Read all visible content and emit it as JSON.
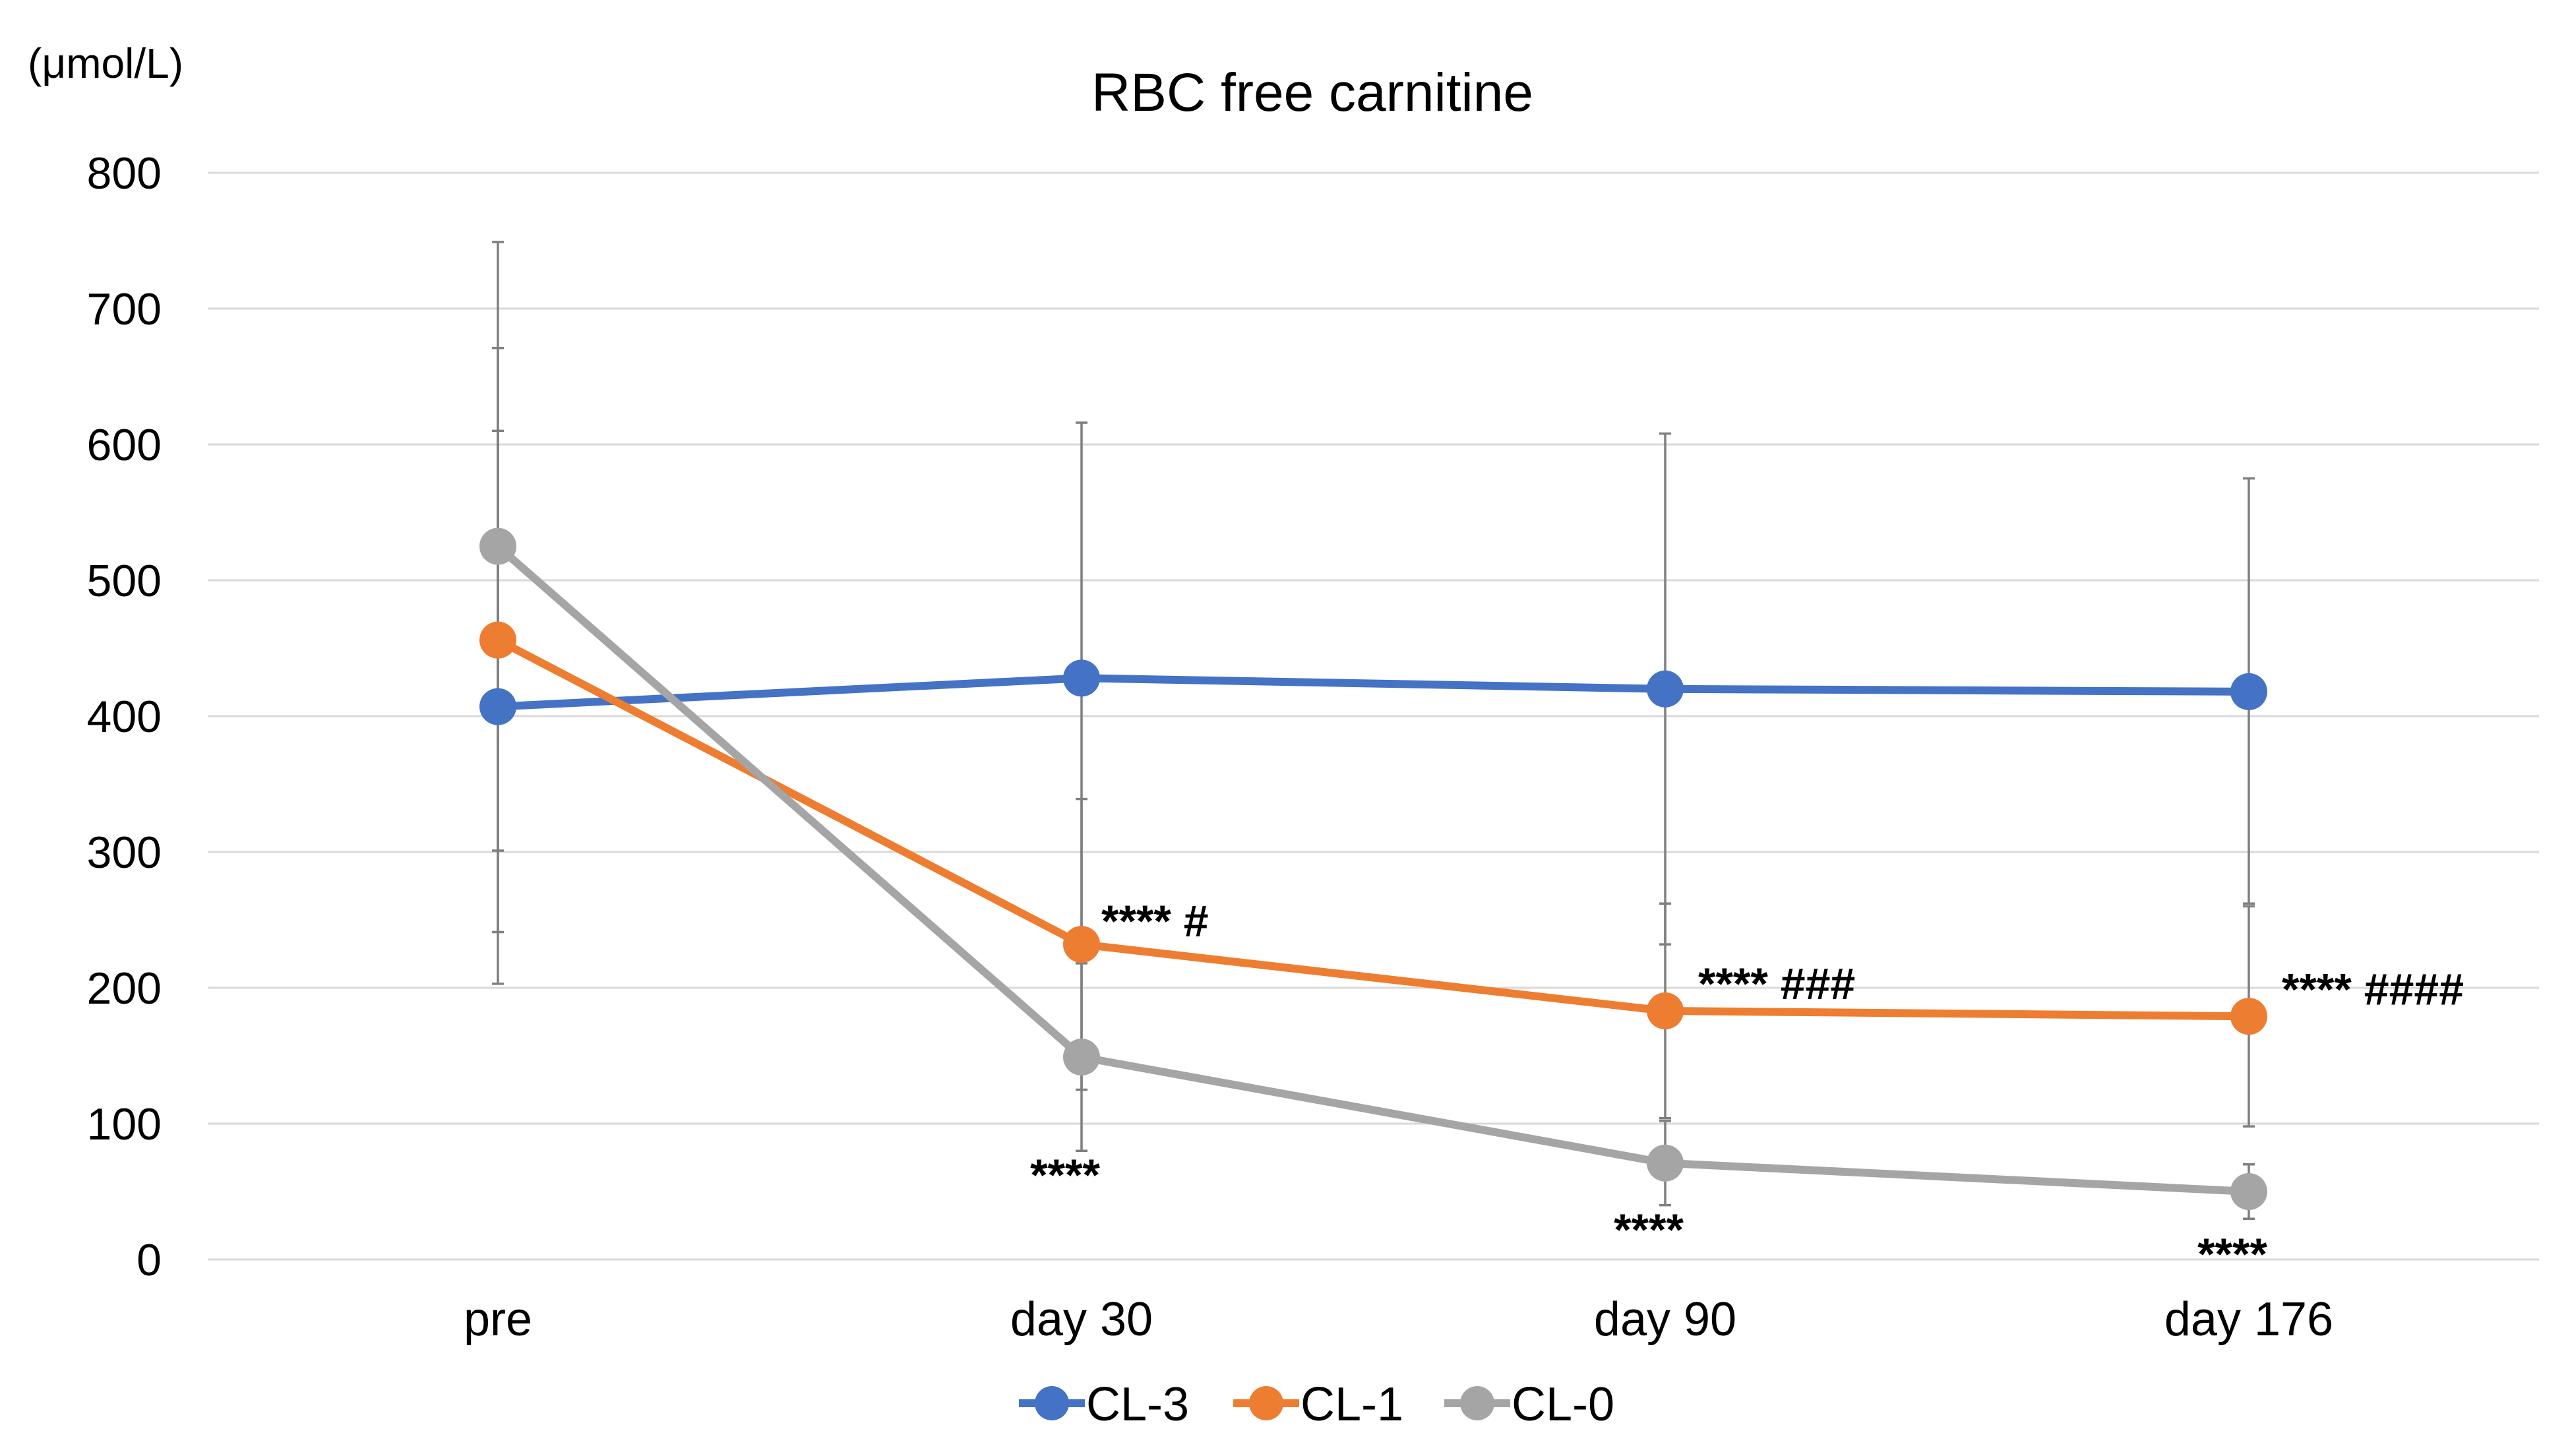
{
  "chart_data": {
    "type": "line",
    "title": "RBC free carnitine",
    "unit_label": "(μmol/L)",
    "xlabel": "",
    "ylabel": "",
    "categories": [
      "pre",
      "day 30",
      "day 90",
      "day 176"
    ],
    "ylim": [
      0,
      800
    ],
    "yticks": [
      0,
      100,
      200,
      300,
      400,
      500,
      600,
      700,
      800
    ],
    "grid": true,
    "legend_position": "bottom",
    "series": [
      {
        "name": "CL-3",
        "color": "#4472c4",
        "values": [
          407,
          428,
          420,
          418
        ],
        "error_low": [
          203,
          240,
          232,
          262
        ],
        "error_high": [
          610,
          616,
          608,
          575
        ]
      },
      {
        "name": "CL-1",
        "color": "#ed7d31",
        "values": [
          456,
          232,
          183,
          179
        ],
        "error_low": [
          241,
          125,
          104,
          98
        ],
        "error_high": [
          671,
          339,
          262,
          260
        ]
      },
      {
        "name": "CL-0",
        "color": "#a5a5a5",
        "values": [
          525,
          149,
          71,
          50
        ],
        "error_low": [
          301,
          80,
          40,
          30
        ],
        "error_high": [
          749,
          218,
          102,
          70
        ]
      }
    ],
    "annotations": [
      {
        "category": "day 30",
        "series": "CL-1",
        "text": "**** #",
        "placement": "above-right"
      },
      {
        "category": "day 90",
        "series": "CL-1",
        "text": "**** ###",
        "placement": "right"
      },
      {
        "category": "day 176",
        "series": "CL-1",
        "text": "**** ####",
        "placement": "right"
      },
      {
        "category": "day 30",
        "series": "CL-0",
        "text": "****",
        "placement": "below"
      },
      {
        "category": "day 90",
        "series": "CL-0",
        "text": "****",
        "placement": "below"
      },
      {
        "category": "day 176",
        "series": "CL-0",
        "text": "****",
        "placement": "below"
      }
    ]
  }
}
